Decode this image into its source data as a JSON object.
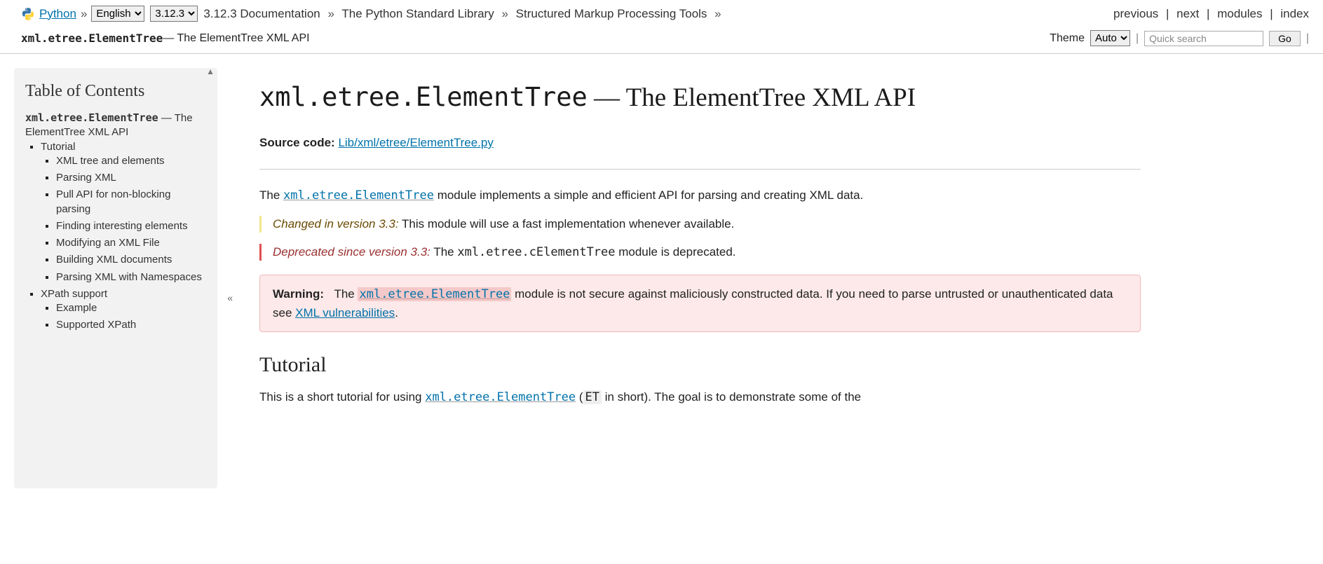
{
  "top": {
    "python_link": "Python",
    "language_options": [
      "English"
    ],
    "version_options": [
      "3.12.3"
    ],
    "breadcrumb": [
      "3.12.3 Documentation",
      "The Python Standard Library",
      "Structured Markup Processing Tools"
    ],
    "nav": {
      "previous": "previous",
      "next": "next",
      "modules": "modules",
      "index": "index"
    }
  },
  "sub": {
    "module": "xml.etree.ElementTree",
    "subtitle": " — The ElementTree XML API",
    "theme_label": "Theme",
    "theme_options": [
      "Auto"
    ],
    "search_placeholder": "Quick search",
    "go": "Go"
  },
  "toc": {
    "heading": "Table of Contents",
    "root_module": "xml.etree.ElementTree",
    "root_rest": " — The ElementTree XML API",
    "items": [
      {
        "label": "Tutorial",
        "children": [
          {
            "label": "XML tree and elements"
          },
          {
            "label": "Parsing XML"
          },
          {
            "label": "Pull API for non-blocking parsing"
          },
          {
            "label": "Finding interesting elements"
          },
          {
            "label": "Modifying an XML File"
          },
          {
            "label": "Building XML documents"
          },
          {
            "label": "Parsing XML with Namespaces"
          }
        ]
      },
      {
        "label": "XPath support",
        "children": [
          {
            "label": "Example"
          },
          {
            "label": "Supported XPath"
          }
        ]
      }
    ]
  },
  "page": {
    "heading_module": "xml.etree.ElementTree",
    "heading_rest": " — The ElementTree XML API",
    "source_label": "Source code:",
    "source_link": "Lib/xml/etree/ElementTree.py",
    "intro_pre": "The ",
    "intro_module": "xml.etree.ElementTree",
    "intro_post": " module implements a simple and efficient API for parsing and creating XML data.",
    "changed_label": "Changed in version 3.3:",
    "changed_text": " This module will use a fast implementation whenever available.",
    "deprecated_label": "Deprecated since version 3.3:",
    "deprecated_pre": " The ",
    "deprecated_module": "xml.etree.cElementTree",
    "deprecated_post": " module is deprecated.",
    "warning_label": "Warning:",
    "warning_pre": "The ",
    "warning_module": "xml.etree.ElementTree",
    "warning_mid": " module is not secure against maliciously constructed data. If you need to parse untrusted or unauthenticated data see ",
    "warning_link": "XML vulnerabilities",
    "warning_post": ".",
    "tutorial_heading": "Tutorial",
    "tutorial_p_pre": "This is a short tutorial for using ",
    "tutorial_module": "xml.etree.ElementTree",
    "tutorial_p_mid": " (",
    "tutorial_short": "ET",
    "tutorial_p_post": " in short). The goal is to demonstrate some of the"
  }
}
